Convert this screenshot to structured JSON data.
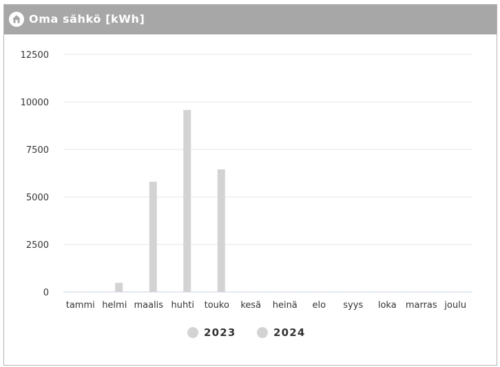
{
  "header": {
    "title": "Oma sähkö [kWh]",
    "icon": "home-icon",
    "background": "#a7a7a7"
  },
  "chart_data": {
    "type": "bar",
    "categories": [
      "tammi",
      "helmi",
      "maalis",
      "huhti",
      "touko",
      "kesä",
      "heinä",
      "elo",
      "syys",
      "loka",
      "marras",
      "joulu"
    ],
    "series": [
      {
        "name": "2023",
        "color": "#d3d3d3",
        "values": [
          0,
          0,
          0,
          0,
          0,
          0,
          0,
          0,
          0,
          0,
          0,
          0
        ]
      },
      {
        "name": "2024",
        "color": "#d3d3d3",
        "values": [
          0,
          480,
          5800,
          9580,
          6450,
          0,
          0,
          0,
          0,
          0,
          0,
          0
        ]
      }
    ],
    "yticks": [
      0,
      2500,
      5000,
      7500,
      10000,
      12500
    ],
    "ylim": [
      0,
      12500
    ],
    "grid": true,
    "legend": "bottom"
  }
}
